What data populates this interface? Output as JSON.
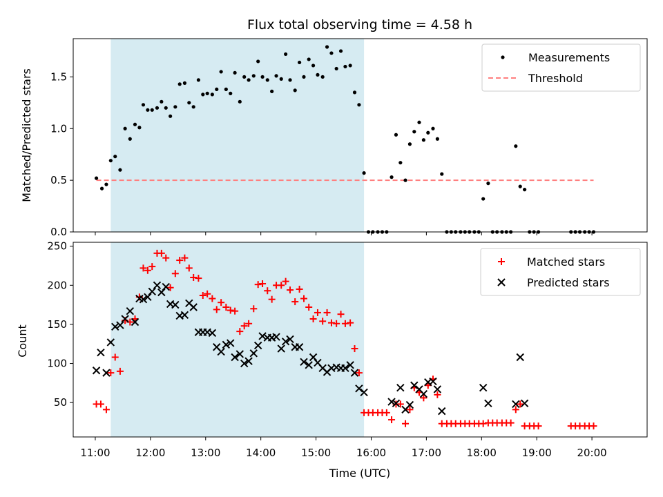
{
  "title": "Flux total observing time = 4.58 h",
  "chart_data": [
    {
      "type": "scatter",
      "ylabel": "Matched/Predicted stars",
      "xlim": [
        10.6,
        21.0
      ],
      "ylim": [
        0,
        1.87
      ],
      "yticks": [
        0.0,
        0.5,
        1.0,
        1.5
      ],
      "ytick_labels": [
        "0.0",
        "0.5",
        "1.0",
        "1.5"
      ],
      "shaded_interval": [
        11.28,
        15.87
      ],
      "threshold": 0.5,
      "legend_position": "top-right",
      "legend": [
        "Measurements",
        "Threshold"
      ],
      "colors": {
        "measurements": "#000000",
        "threshold": "#ff7f7f",
        "shade": "#add8e6"
      },
      "series": [
        {
          "name": "Measurements",
          "x": [
            11.02,
            11.12,
            11.2,
            11.28,
            11.36,
            11.45,
            11.54,
            11.63,
            11.72,
            11.8,
            11.87,
            11.95,
            12.03,
            12.12,
            12.2,
            12.28,
            12.36,
            12.45,
            12.53,
            12.62,
            12.7,
            12.78,
            12.87,
            12.95,
            13.03,
            13.12,
            13.2,
            13.28,
            13.37,
            13.45,
            13.53,
            13.62,
            13.7,
            13.78,
            13.87,
            13.95,
            14.03,
            14.12,
            14.2,
            14.28,
            14.37,
            14.45,
            14.53,
            14.62,
            14.7,
            14.78,
            14.87,
            14.95,
            15.03,
            15.12,
            15.2,
            15.28,
            15.37,
            15.45,
            15.53,
            15.62,
            15.7,
            15.78,
            15.87,
            15.95,
            16.03,
            16.12,
            16.2,
            16.28,
            16.37,
            16.45,
            16.53,
            16.62,
            16.7,
            16.78,
            16.87,
            16.95,
            17.03,
            17.12,
            17.2,
            17.28,
            17.37,
            17.45,
            17.53,
            17.62,
            17.7,
            17.78,
            17.87,
            17.95,
            18.03,
            18.12,
            18.2,
            18.28,
            18.37,
            18.45,
            18.53,
            18.62,
            18.7,
            18.78,
            18.87,
            18.95,
            19.03,
            19.62,
            19.7,
            19.78,
            19.87,
            19.95,
            20.03
          ],
          "y": [
            0.52,
            0.42,
            0.46,
            0.69,
            0.73,
            0.6,
            1.0,
            0.9,
            1.04,
            1.01,
            1.23,
            1.18,
            1.18,
            1.2,
            1.26,
            1.2,
            1.12,
            1.21,
            1.43,
            1.44,
            1.25,
            1.21,
            1.47,
            1.33,
            1.34,
            1.33,
            1.38,
            1.55,
            1.38,
            1.34,
            1.54,
            1.26,
            1.5,
            1.47,
            1.51,
            1.65,
            1.5,
            1.47,
            1.36,
            1.51,
            1.48,
            1.72,
            1.47,
            1.37,
            1.64,
            1.5,
            1.67,
            1.61,
            1.52,
            1.5,
            1.79,
            1.73,
            1.58,
            1.75,
            1.6,
            1.61,
            1.35,
            1.23,
            0.57,
            0.0,
            0.0,
            0.0,
            0.0,
            0.0,
            0.53,
            0.94,
            0.67,
            0.5,
            0.85,
            0.97,
            1.06,
            0.89,
            0.96,
            1.0,
            0.9,
            0.56,
            0.0,
            0.0,
            0.0,
            0.0,
            0.0,
            0.0,
            0.0,
            0.0,
            0.32,
            0.47,
            0.0,
            0.0,
            0.0,
            0.0,
            0.0,
            0.83,
            0.44,
            0.41,
            0.0,
            0.0,
            0.0,
            0.0,
            0.0,
            0.0,
            0.0,
            0.0,
            0.0
          ]
        },
        {
          "name": "Threshold",
          "x": [
            11.02,
            20.03
          ],
          "y": [
            0.5,
            0.5
          ]
        }
      ]
    },
    {
      "type": "scatter",
      "xlabel": "Time (UTC)",
      "ylabel": "Count",
      "xlim": [
        10.6,
        21.0
      ],
      "ylim": [
        6,
        255
      ],
      "xticks": [
        11,
        12,
        13,
        14,
        15,
        16,
        17,
        18,
        19,
        20
      ],
      "xtick_labels": [
        "11:00",
        "12:00",
        "13:00",
        "14:00",
        "15:00",
        "16:00",
        "17:00",
        "18:00",
        "19:00",
        "20:00"
      ],
      "yticks": [
        50,
        100,
        150,
        200,
        250
      ],
      "ytick_labels": [
        "50",
        "100",
        "150",
        "200",
        "250"
      ],
      "shaded_interval": [
        11.28,
        15.87
      ],
      "legend_position": "top-right",
      "legend": [
        "Matched stars",
        "Predicted stars"
      ],
      "colors": {
        "matched": "#ff0000",
        "predicted": "#000000",
        "shade": "#add8e6"
      },
      "series": [
        {
          "name": "Matched stars",
          "x": [
            11.02,
            11.1,
            11.2,
            11.28,
            11.36,
            11.45,
            11.54,
            11.63,
            11.72,
            11.8,
            11.87,
            11.95,
            12.03,
            12.12,
            12.2,
            12.28,
            12.36,
            12.45,
            12.53,
            12.62,
            12.7,
            12.78,
            12.87,
            12.95,
            13.03,
            13.12,
            13.2,
            13.28,
            13.37,
            13.45,
            13.53,
            13.62,
            13.7,
            13.78,
            13.87,
            13.95,
            14.03,
            14.12,
            14.2,
            14.28,
            14.37,
            14.45,
            14.53,
            14.62,
            14.7,
            14.78,
            14.87,
            14.95,
            15.03,
            15.12,
            15.2,
            15.28,
            15.37,
            15.45,
            15.53,
            15.62,
            15.7,
            15.78,
            15.87,
            15.95,
            16.03,
            16.12,
            16.2,
            16.28,
            16.37,
            16.45,
            16.53,
            16.62,
            16.7,
            16.78,
            16.87,
            16.95,
            17.03,
            17.12,
            17.2,
            17.28,
            17.37,
            17.45,
            17.53,
            17.62,
            17.7,
            17.78,
            17.87,
            17.95,
            18.03,
            18.12,
            18.2,
            18.28,
            18.37,
            18.45,
            18.53,
            18.62,
            18.7,
            18.78,
            18.87,
            18.95,
            19.03,
            19.62,
            19.7,
            19.78,
            19.87,
            19.95,
            20.03
          ],
          "y": [
            48,
            48,
            41,
            88,
            108,
            90,
            155,
            153,
            157,
            185,
            222,
            219,
            224,
            241,
            241,
            235,
            197,
            215,
            232,
            235,
            222,
            210,
            209,
            187,
            189,
            183,
            169,
            178,
            172,
            168,
            167,
            141,
            148,
            151,
            170,
            201,
            202,
            193,
            182,
            200,
            200,
            205,
            194,
            179,
            195,
            183,
            172,
            157,
            165,
            154,
            165,
            152,
            151,
            163,
            151,
            152,
            119,
            88,
            37,
            37,
            37,
            37,
            37,
            37,
            28,
            48,
            48,
            23,
            41,
            69,
            63,
            56,
            72,
            80,
            60,
            23,
            23,
            23,
            23,
            23,
            23,
            23,
            23,
            23,
            23,
            24,
            24,
            24,
            24,
            24,
            24,
            41,
            48,
            20,
            20,
            20,
            20,
            20,
            20,
            20,
            20,
            20,
            20
          ]
        },
        {
          "name": "Predicted stars",
          "x": [
            11.02,
            11.1,
            11.2,
            11.28,
            11.36,
            11.45,
            11.54,
            11.63,
            11.72,
            11.8,
            11.87,
            11.95,
            12.03,
            12.12,
            12.2,
            12.28,
            12.36,
            12.45,
            12.53,
            12.62,
            12.7,
            12.78,
            12.87,
            12.95,
            13.03,
            13.12,
            13.2,
            13.28,
            13.37,
            13.45,
            13.53,
            13.62,
            13.7,
            13.78,
            13.87,
            13.95,
            14.03,
            14.12,
            14.2,
            14.28,
            14.37,
            14.45,
            14.53,
            14.62,
            14.7,
            14.78,
            14.87,
            14.95,
            15.03,
            15.12,
            15.2,
            15.28,
            15.37,
            15.45,
            15.53,
            15.62,
            15.7,
            15.78,
            15.87,
            16.37,
            16.45,
            16.53,
            16.62,
            16.7,
            16.78,
            16.87,
            16.95,
            17.03,
            17.12,
            17.2,
            17.28,
            18.03,
            18.12,
            18.62,
            18.7,
            18.78
          ],
          "y": [
            91,
            114,
            88,
            127,
            147,
            149,
            157,
            167,
            153,
            183,
            182,
            185,
            192,
            200,
            191,
            198,
            176,
            175,
            161,
            162,
            177,
            172,
            140,
            140,
            140,
            139,
            121,
            115,
            124,
            126,
            108,
            112,
            100,
            103,
            113,
            123,
            135,
            133,
            133,
            134,
            119,
            128,
            131,
            121,
            121,
            102,
            98,
            108,
            101,
            94,
            89,
            94,
            95,
            94,
            94,
            98,
            88,
            68,
            63,
            51,
            49,
            69,
            41,
            47,
            72,
            67,
            61,
            76,
            77,
            67,
            39,
            69,
            49,
            48,
            108,
            49
          ]
        }
      ]
    }
  ]
}
